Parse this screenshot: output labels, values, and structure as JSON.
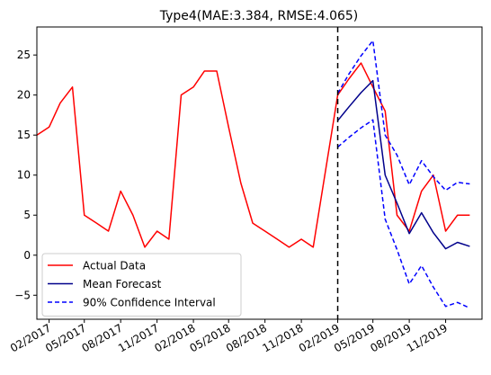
{
  "chart_data": {
    "type": "line",
    "title": "Type4(MAE:3.384, RMSE:4.065)",
    "xlabel": "",
    "ylabel": "",
    "x_axis": {
      "type": "date",
      "range": [
        "2017-01-01",
        "2020-02-01"
      ],
      "ticks": [
        {
          "date": "2017-02-01",
          "label": "02/2017"
        },
        {
          "date": "2017-05-01",
          "label": "05/2017"
        },
        {
          "date": "2017-08-01",
          "label": "08/2017"
        },
        {
          "date": "2017-11-01",
          "label": "11/2017"
        },
        {
          "date": "2018-02-01",
          "label": "02/2018"
        },
        {
          "date": "2018-05-01",
          "label": "05/2018"
        },
        {
          "date": "2018-08-01",
          "label": "08/2018"
        },
        {
          "date": "2018-11-01",
          "label": "11/2018"
        },
        {
          "date": "2019-02-01",
          "label": "02/2019"
        },
        {
          "date": "2019-05-01",
          "label": "05/2019"
        },
        {
          "date": "2019-08-01",
          "label": "08/2019"
        },
        {
          "date": "2019-11-01",
          "label": "11/2019"
        }
      ]
    },
    "y_axis": {
      "ylim": [
        -8,
        28.5
      ],
      "ticks": [
        -5,
        0,
        5,
        10,
        15,
        20,
        25
      ]
    },
    "grid": false,
    "legend_position": "lower left",
    "vline": {
      "date": "2019-02-01",
      "style": "dashed",
      "color": "#000000"
    },
    "series": [
      {
        "name": "Actual Data",
        "color": "#ff0000",
        "style": "solid",
        "points": [
          [
            "2017-01-01",
            15
          ],
          [
            "2017-02-01",
            16
          ],
          [
            "2017-03-01",
            19
          ],
          [
            "2017-04-01",
            21
          ],
          [
            "2017-05-01",
            5
          ],
          [
            "2017-06-01",
            4
          ],
          [
            "2017-07-01",
            3
          ],
          [
            "2017-08-01",
            8
          ],
          [
            "2017-09-01",
            5
          ],
          [
            "2017-10-01",
            1
          ],
          [
            "2017-11-01",
            3
          ],
          [
            "2017-12-01",
            2
          ],
          [
            "2018-01-01",
            20
          ],
          [
            "2018-02-01",
            21
          ],
          [
            "2018-03-01",
            23
          ],
          [
            "2018-04-01",
            23
          ],
          [
            "2018-05-01",
            16
          ],
          [
            "2018-06-01",
            9
          ],
          [
            "2018-07-01",
            4
          ],
          [
            "2018-08-01",
            3
          ],
          [
            "2018-09-01",
            2
          ],
          [
            "2018-10-01",
            1
          ],
          [
            "2018-11-01",
            2
          ],
          [
            "2018-12-01",
            1
          ],
          [
            "2019-02-01",
            20
          ],
          [
            "2019-03-01",
            22
          ],
          [
            "2019-04-01",
            24
          ],
          [
            "2019-05-01",
            21
          ],
          [
            "2019-06-01",
            18
          ],
          [
            "2019-07-01",
            5
          ],
          [
            "2019-08-01",
            3
          ],
          [
            "2019-09-01",
            8
          ],
          [
            "2019-10-01",
            10
          ],
          [
            "2019-11-01",
            3
          ],
          [
            "2019-12-01",
            5
          ],
          [
            "2020-01-01",
            5
          ]
        ]
      },
      {
        "name": "Mean Forecast",
        "color": "#00008b",
        "style": "solid",
        "points": [
          [
            "2019-02-01",
            16.8
          ],
          [
            "2019-03-01",
            18.5
          ],
          [
            "2019-04-01",
            20.3
          ],
          [
            "2019-05-01",
            21.8
          ],
          [
            "2019-06-01",
            10
          ],
          [
            "2019-07-01",
            6.5
          ],
          [
            "2019-08-01",
            2.7
          ],
          [
            "2019-09-01",
            5.3
          ],
          [
            "2019-10-01",
            2.8
          ],
          [
            "2019-11-01",
            0.8
          ],
          [
            "2019-12-01",
            1.6
          ],
          [
            "2020-01-01",
            1.1
          ]
        ]
      },
      {
        "name": "90% Confidence Interval",
        "color": "#0000ff",
        "style": "dashed",
        "points": [
          [
            "2019-02-01",
            20.2
          ],
          [
            "2019-03-01",
            22.6
          ],
          [
            "2019-04-01",
            24.9
          ],
          [
            "2019-05-01",
            26.8
          ],
          [
            "2019-06-01",
            15
          ],
          [
            "2019-07-01",
            12.5
          ],
          [
            "2019-08-01",
            8.8
          ],
          [
            "2019-09-01",
            11.8
          ],
          [
            "2019-10-01",
            9.8
          ],
          [
            "2019-11-01",
            8.1
          ],
          [
            "2019-12-01",
            9.1
          ],
          [
            "2020-01-01",
            8.9
          ]
        ]
      },
      {
        "name": "",
        "legend": false,
        "color": "#0000ff",
        "style": "dashed",
        "points": [
          [
            "2019-02-01",
            13.5
          ],
          [
            "2019-03-01",
            14.7
          ],
          [
            "2019-04-01",
            15.9
          ],
          [
            "2019-05-01",
            16.9
          ],
          [
            "2019-06-01",
            4.5
          ],
          [
            "2019-07-01",
            0.7
          ],
          [
            "2019-08-01",
            -3.6
          ],
          [
            "2019-09-01",
            -1.3
          ],
          [
            "2019-10-01",
            -4
          ],
          [
            "2019-11-01",
            -6.4
          ],
          [
            "2019-12-01",
            -5.9
          ],
          [
            "2020-01-01",
            -6.6
          ]
        ]
      }
    ]
  }
}
